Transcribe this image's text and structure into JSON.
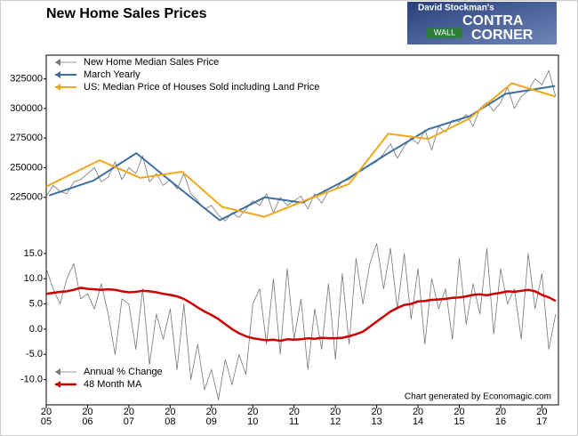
{
  "logo": {
    "line1": "David Stockman's",
    "line2": "CONTRA",
    "line3": "CORNER",
    "sign": "WALL"
  },
  "chart_data": [
    {
      "type": "line",
      "title": "New Home Sales Prices",
      "xlim": [
        2005,
        2017.4
      ],
      "ylim": [
        200000,
        345000
      ],
      "yticks": [
        225000,
        250000,
        275000,
        300000,
        325000
      ],
      "series": [
        {
          "name": "New Home Median Sales Price",
          "color": "#777777",
          "width": 0.8,
          "x": [
            2005,
            2005.167,
            2005.333,
            2005.5,
            2005.667,
            2005.833,
            2006,
            2006.167,
            2006.333,
            2006.5,
            2006.667,
            2006.833,
            2007,
            2007.167,
            2007.333,
            2007.5,
            2007.667,
            2007.833,
            2008,
            2008.167,
            2008.333,
            2008.5,
            2008.667,
            2008.833,
            2009,
            2009.167,
            2009.333,
            2009.5,
            2009.667,
            2009.833,
            2010,
            2010.167,
            2010.333,
            2010.5,
            2010.667,
            2010.833,
            2011,
            2011.167,
            2011.333,
            2011.5,
            2011.667,
            2011.833,
            2012,
            2012.167,
            2012.333,
            2012.5,
            2012.667,
            2012.833,
            2013,
            2013.167,
            2013.333,
            2013.5,
            2013.667,
            2013.833,
            2014,
            2014.167,
            2014.333,
            2014.5,
            2014.667,
            2014.833,
            2015,
            2015.167,
            2015.333,
            2015.5,
            2015.667,
            2015.833,
            2016,
            2016.167,
            2016.333,
            2016.5,
            2016.667,
            2016.833,
            2017,
            2017.167,
            2017.333
          ],
          "values": [
            226000,
            235000,
            230000,
            228000,
            238000,
            240000,
            245000,
            250000,
            238000,
            242000,
            255000,
            240000,
            250000,
            245000,
            260000,
            238000,
            245000,
            235000,
            240000,
            232000,
            245000,
            228000,
            222000,
            215000,
            218000,
            210000,
            205000,
            212000,
            208000,
            215000,
            222000,
            218000,
            228000,
            212000,
            225000,
            218000,
            222000,
            226000,
            215000,
            228000,
            220000,
            230000,
            232000,
            238000,
            240000,
            245000,
            248000,
            252000,
            255000,
            262000,
            270000,
            258000,
            268000,
            275000,
            270000,
            282000,
            265000,
            285000,
            280000,
            290000,
            289000,
            295000,
            285000,
            300000,
            305000,
            298000,
            305000,
            318000,
            300000,
            310000,
            315000,
            325000,
            320000,
            332000,
            310000
          ]
        },
        {
          "name": "March Yearly",
          "color": "#3e6f9e",
          "width": 2,
          "x": [
            2005.07,
            2006.15,
            2007.18,
            2008.18,
            2009.2,
            2010.29,
            2011.2,
            2012.23,
            2013.25,
            2014.25,
            2015.26,
            2016.12,
            2017.32
          ],
          "values": [
            226500,
            239200,
            262300,
            233900,
            205600,
            225000,
            220500,
            239200,
            261600,
            282500,
            293700,
            312300,
            319000
          ]
        },
        {
          "name": "US: Median Price of Houses Sold including Land Price",
          "color": "#f0a81c",
          "width": 2,
          "x": [
            2005,
            2006.29,
            2007.28,
            2008.29,
            2009.26,
            2010.29,
            2011.3,
            2012.33,
            2013.28,
            2014.25,
            2015.24,
            2016.27,
            2017.32
          ],
          "values": [
            234000,
            256300,
            241400,
            246600,
            216800,
            208600,
            222800,
            236200,
            278700,
            274300,
            291400,
            321300,
            310100
          ]
        }
      ]
    },
    {
      "type": "line",
      "annotation": "Chart generated by Economagic.com",
      "xlim": [
        2005,
        2017.4
      ],
      "ylim": [
        -15,
        18.5
      ],
      "xticks": [
        2005,
        2006,
        2007,
        2008,
        2009,
        2010,
        2011,
        2012,
        2013,
        2014,
        2015,
        2016,
        2017
      ],
      "yticks": [
        {
          "value": -10,
          "label": "-10.0"
        },
        {
          "value": -5,
          "label": "-5.0"
        },
        {
          "value": 0,
          "label": "0.0"
        },
        {
          "value": 5,
          "label": "5.0"
        },
        {
          "value": 10,
          "label": "10.0"
        },
        {
          "value": 15,
          "label": "15.0"
        }
      ],
      "series": [
        {
          "name": "Annual % Change",
          "color": "#777777",
          "width": 0.8,
          "x": [
            2005,
            2005.167,
            2005.333,
            2005.5,
            2005.667,
            2005.833,
            2006,
            2006.167,
            2006.333,
            2006.5,
            2006.667,
            2006.833,
            2007,
            2007.167,
            2007.333,
            2007.5,
            2007.667,
            2007.833,
            2008,
            2008.167,
            2008.333,
            2008.5,
            2008.667,
            2008.833,
            2009,
            2009.167,
            2009.333,
            2009.5,
            2009.667,
            2009.833,
            2010,
            2010.167,
            2010.333,
            2010.5,
            2010.667,
            2010.833,
            2011,
            2011.167,
            2011.333,
            2011.5,
            2011.667,
            2011.833,
            2012,
            2012.167,
            2012.333,
            2012.5,
            2012.667,
            2012.833,
            2013,
            2013.167,
            2013.333,
            2013.5,
            2013.667,
            2013.833,
            2014,
            2014.167,
            2014.333,
            2014.5,
            2014.667,
            2014.833,
            2015,
            2015.167,
            2015.333,
            2015.5,
            2015.667,
            2015.833,
            2016,
            2016.167,
            2016.333,
            2016.5,
            2016.667,
            2016.833,
            2017,
            2017.167,
            2017.333
          ],
          "values": [
            12,
            8,
            5,
            10,
            13,
            6,
            7,
            4,
            9,
            3,
            -5,
            6,
            5,
            -4,
            8,
            -7,
            3,
            -2,
            4,
            -8,
            5,
            -10,
            -3,
            -12,
            -8,
            -14,
            -6,
            -11,
            -5,
            -9,
            5,
            8,
            -3,
            10,
            -5,
            12,
            -2,
            6,
            -8,
            4,
            -4,
            9,
            -6,
            11,
            -3,
            14,
            5,
            13,
            17,
            8,
            16,
            4,
            15,
            2,
            12,
            -3,
            10,
            4,
            8,
            -2,
            14,
            1,
            9,
            3,
            16,
            -1,
            12,
            5,
            8,
            -2,
            15,
            4,
            11,
            -4,
            3
          ]
        },
        {
          "name": "48 Month MA",
          "color": "#cc0000",
          "width": 2.5,
          "x": [
            2005,
            2005.167,
            2005.333,
            2005.5,
            2005.667,
            2005.833,
            2006,
            2006.167,
            2006.333,
            2006.5,
            2006.667,
            2006.833,
            2007,
            2007.167,
            2007.333,
            2007.5,
            2007.667,
            2007.833,
            2008,
            2008.167,
            2008.333,
            2008.5,
            2008.667,
            2008.833,
            2009,
            2009.167,
            2009.333,
            2009.5,
            2009.667,
            2009.833,
            2010,
            2010.167,
            2010.333,
            2010.5,
            2010.667,
            2010.833,
            2011,
            2011.167,
            2011.333,
            2011.5,
            2011.667,
            2011.833,
            2012,
            2012.167,
            2012.333,
            2012.5,
            2012.667,
            2012.833,
            2013,
            2013.167,
            2013.333,
            2013.5,
            2013.667,
            2013.833,
            2014,
            2014.167,
            2014.333,
            2014.5,
            2014.667,
            2014.833,
            2015,
            2015.167,
            2015.333,
            2015.5,
            2015.667,
            2015.833,
            2016,
            2016.167,
            2016.333,
            2016.5,
            2016.667,
            2016.833,
            2017,
            2017.167,
            2017.333
          ],
          "values": [
            7.0,
            7.2,
            7.4,
            7.5,
            7.8,
            8.2,
            8.0,
            7.9,
            7.8,
            7.9,
            7.8,
            7.5,
            7.3,
            7.4,
            7.6,
            7.5,
            7.3,
            7.0,
            6.8,
            6.5,
            6.0,
            5.2,
            4.3,
            3.5,
            2.8,
            2.0,
            1.0,
            0.0,
            -0.8,
            -1.4,
            -1.8,
            -2.0,
            -2.2,
            -2.1,
            -2.3,
            -2.0,
            -2.1,
            -2.0,
            -1.8,
            -1.9,
            -1.7,
            -1.8,
            -1.8,
            -1.7,
            -1.4,
            -1.0,
            -0.5,
            0.5,
            1.5,
            2.5,
            3.5,
            4.2,
            4.8,
            5.0,
            5.5,
            5.6,
            5.8,
            5.9,
            6.0,
            6.2,
            6.3,
            6.5,
            6.8,
            6.9,
            6.7,
            7.0,
            7.2,
            7.5,
            7.4,
            7.6,
            7.8,
            7.5,
            6.8,
            6.3,
            5.6
          ]
        }
      ]
    }
  ]
}
